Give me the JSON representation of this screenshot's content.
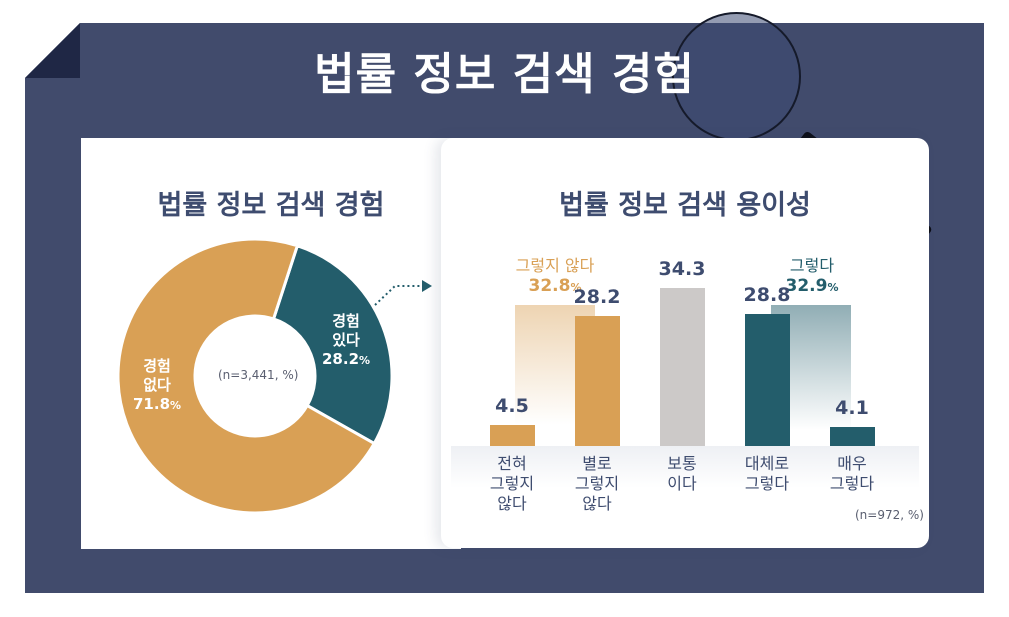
{
  "header": {
    "title": "법률 정보 검색 경험"
  },
  "left_panel": {
    "title": "법률 정보 검색 경험",
    "sample_note": "(n=3,441, %)",
    "slices": [
      {
        "label_line1": "경험",
        "label_line2": "있다",
        "value": "28.2",
        "unit": "%",
        "color": "#235d6b"
      },
      {
        "label_line1": "경험",
        "label_line2": "없다",
        "value": "71.8",
        "unit": "%",
        "color": "#d9a055"
      }
    ]
  },
  "right_panel": {
    "title": "법률 정보 검색 용이성",
    "sample_note": "(n=972, %)",
    "group_negative": {
      "label": "그렇지 않다",
      "value": "32.8",
      "unit": "%"
    },
    "group_positive": {
      "label": "그렇다",
      "value": "32.9",
      "unit": "%"
    },
    "bars": [
      {
        "value": "4.5",
        "cat1": "전혀",
        "cat2": "그렇지",
        "cat3": "않다",
        "color": "#d9a055"
      },
      {
        "value": "28.2",
        "cat1": "별로",
        "cat2": "그렇지",
        "cat3": "않다",
        "color": "#d9a055"
      },
      {
        "value": "34.3",
        "cat1": "보통",
        "cat2": "이다",
        "cat3": "",
        "color": "#ccc9c8"
      },
      {
        "value": "28.8",
        "cat1": "대체로",
        "cat2": "그렇다",
        "cat3": "",
        "color": "#235d6b"
      },
      {
        "value": "4.1",
        "cat1": "매우",
        "cat2": "그렇다",
        "cat3": "",
        "color": "#235d6b"
      }
    ]
  },
  "colors": {
    "frame": "#414b6c",
    "title_text": "#3e4c6f",
    "negative": "#d9a055",
    "neutral": "#ccc9c8",
    "positive": "#235d6b"
  },
  "chart_data": [
    {
      "type": "pie",
      "title": "법률 정보 검색 경험",
      "categories": [
        "경험 있다",
        "경험 없다"
      ],
      "values": [
        28.2,
        71.8
      ],
      "annotation": "(n=3,441, %)",
      "donut": true
    },
    {
      "type": "bar",
      "title": "법률 정보 검색 용이성",
      "categories": [
        "전혀 그렇지 않다",
        "별로 그렇지 않다",
        "보통이다",
        "대체로 그렇다",
        "매우 그렇다"
      ],
      "values": [
        4.5,
        28.2,
        34.3,
        28.8,
        4.1
      ],
      "annotations": [
        {
          "text": "그렇지 않다 32.8%",
          "covers": [
            "전혀 그렇지 않다",
            "별로 그렇지 않다"
          ]
        },
        {
          "text": "그렇다 32.9%",
          "covers": [
            "대체로 그렇다",
            "매우 그렇다"
          ]
        },
        {
          "text": "(n=972, %)"
        }
      ],
      "xlabel": "",
      "ylabel": "",
      "grid": false
    }
  ]
}
